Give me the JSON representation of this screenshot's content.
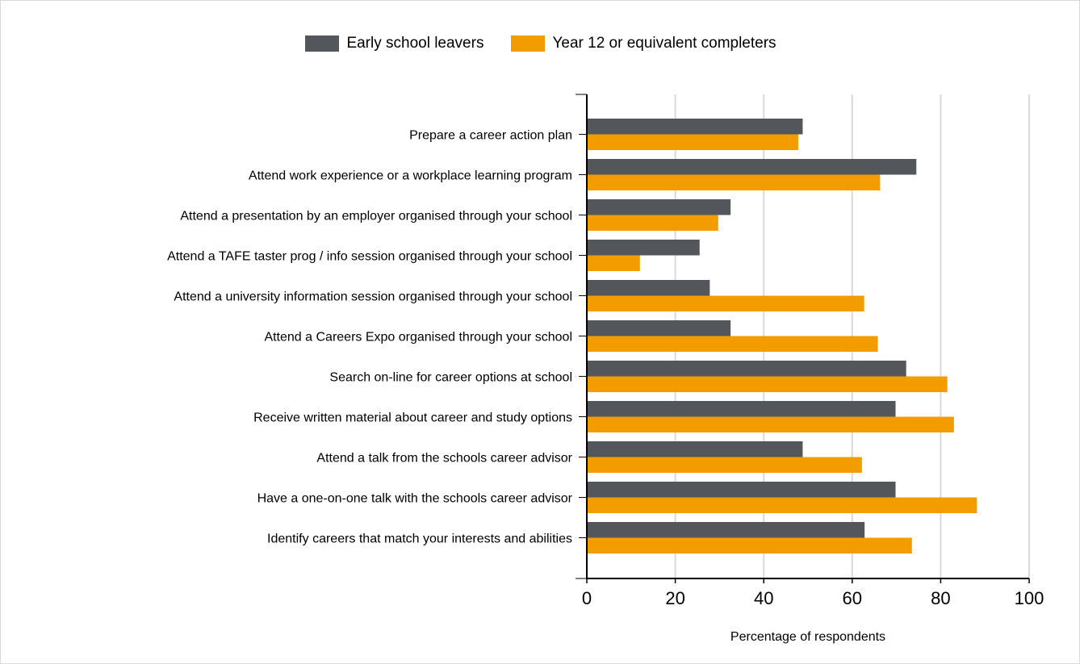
{
  "chart_data": {
    "type": "bar",
    "orientation": "horizontal",
    "categories": [
      "Prepare a career action plan",
      "Attend work experience or a workplace learning program",
      "Attend a presentation by an employer organised through your school",
      "Attend a TAFE taster prog / info session organised through your school",
      "Attend a university information session organised through your school",
      "Attend a Careers Expo organised through your school",
      "Search on-line for career options at school",
      "Receive written material about career and study options",
      "Attend a talk from the schools career advisor",
      "Have a one-on-one talk with the schools career advisor",
      "Identify careers that match your interests and abilities"
    ],
    "series": [
      {
        "name": "Early school leavers",
        "color": "#53565a",
        "values": [
          48.8,
          74.5,
          32.5,
          25.5,
          27.8,
          32.5,
          72.2,
          69.8,
          48.8,
          69.8,
          62.8
        ]
      },
      {
        "name": "Year 12 or equivalent completers",
        "color": "#f39c00",
        "values": [
          47.8,
          66.3,
          29.7,
          12.0,
          62.7,
          65.8,
          81.5,
          83.0,
          62.2,
          88.2,
          73.5
        ]
      }
    ],
    "xlim": [
      0,
      100
    ],
    "xticks": [
      "0",
      "20",
      "40",
      "60",
      "80",
      "100"
    ],
    "xlabel": "Percentage of respondents",
    "ylabel": "",
    "grid": "vertical",
    "legend_position": "top"
  }
}
